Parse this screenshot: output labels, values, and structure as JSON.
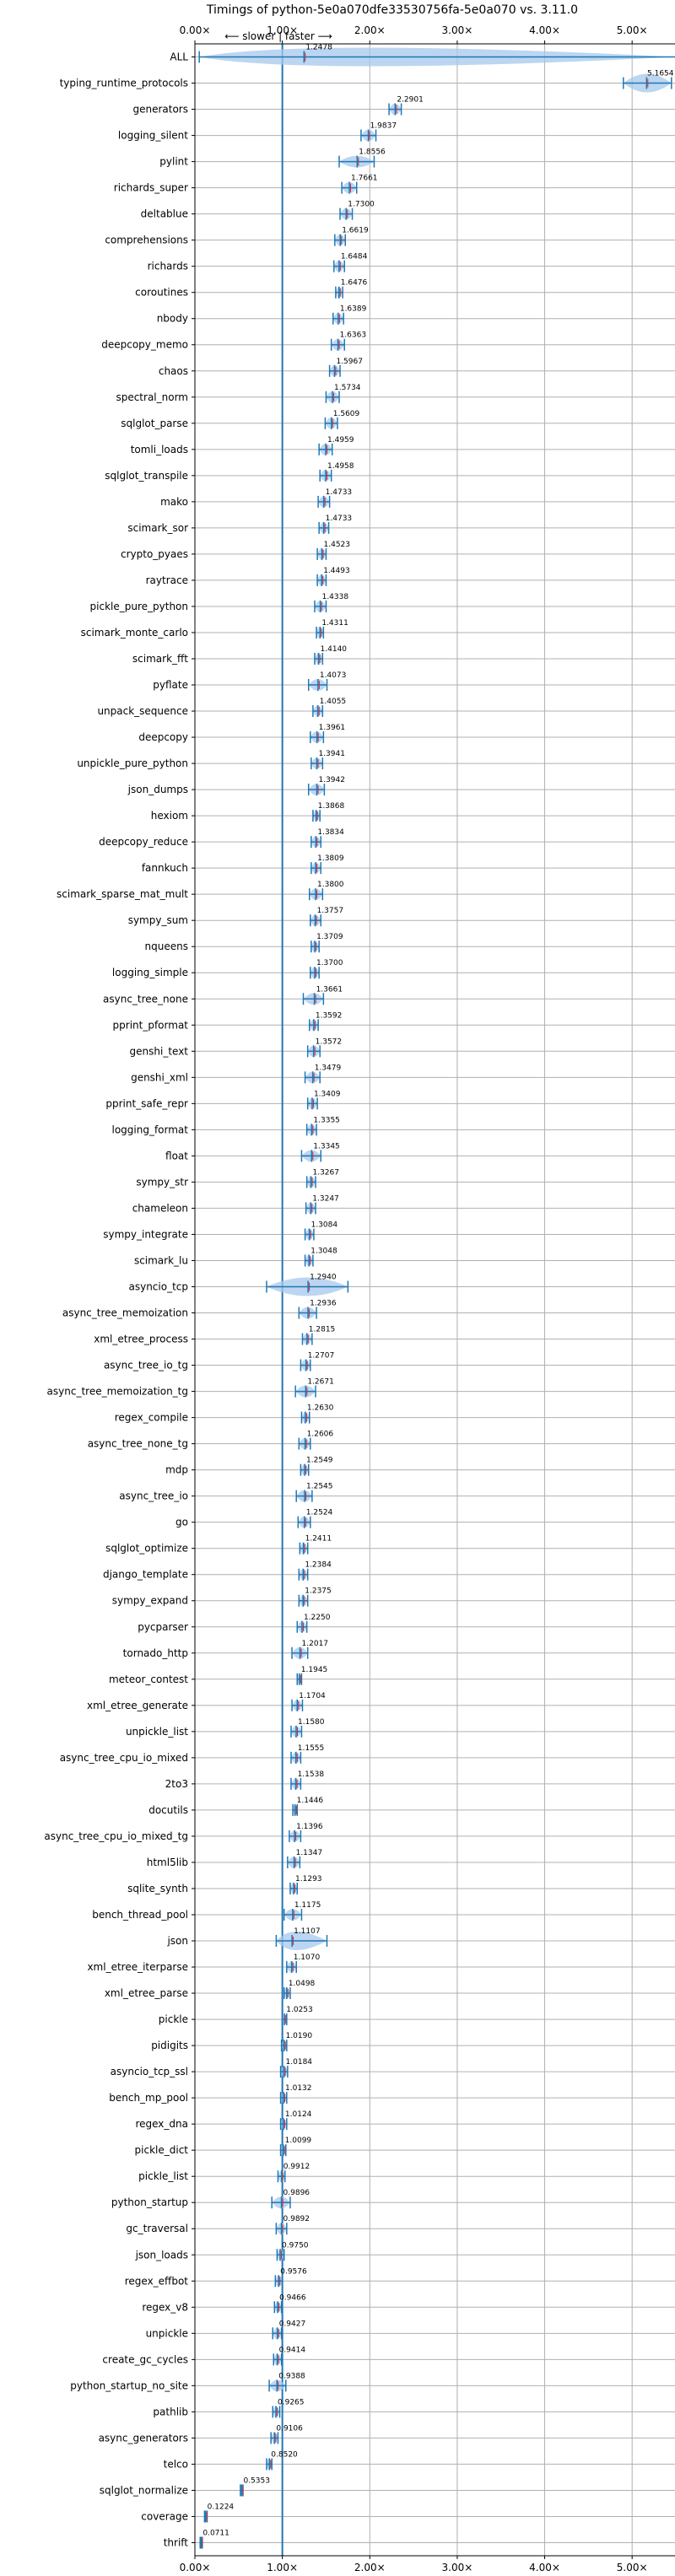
{
  "chart_data": {
    "type": "violin",
    "title": "Timings of python-5e0a070dfe33530756fa-5e0a070 vs. 3.11.0",
    "direction_annotation": "⟵ slower | faster ⟶",
    "xlim": [
      0,
      5.5
    ],
    "x_ticks": [
      "0.00×",
      "1.00×",
      "2.00×",
      "3.00×",
      "4.00×",
      "5.00×"
    ],
    "x_tick_values": [
      0,
      1,
      2,
      3,
      4,
      5
    ],
    "grid": true,
    "reference_line": 1.0,
    "colors": {
      "violin": "#a6c8ec",
      "errorbar": "#1f77b4",
      "median": "#d62728",
      "reference": "#1f77b4"
    },
    "categories": [
      "ALL",
      "typing_runtime_protocols",
      "generators",
      "logging_silent",
      "pylint",
      "richards_super",
      "deltablue",
      "comprehensions",
      "richards",
      "coroutines",
      "nbody",
      "deepcopy_memo",
      "chaos",
      "spectral_norm",
      "sqlglot_parse",
      "tomli_loads",
      "sqlglot_transpile",
      "mako",
      "scimark_sor",
      "crypto_pyaes",
      "raytrace",
      "pickle_pure_python",
      "scimark_monte_carlo",
      "scimark_fft",
      "pyflate",
      "unpack_sequence",
      "deepcopy",
      "unpickle_pure_python",
      "json_dumps",
      "hexiom",
      "deepcopy_reduce",
      "fannkuch",
      "scimark_sparse_mat_mult",
      "sympy_sum",
      "nqueens",
      "logging_simple",
      "async_tree_none",
      "pprint_pformat",
      "genshi_text",
      "genshi_xml",
      "pprint_safe_repr",
      "logging_format",
      "float",
      "sympy_str",
      "chameleon",
      "sympy_integrate",
      "scimark_lu",
      "asyncio_tcp",
      "async_tree_memoization",
      "xml_etree_process",
      "async_tree_io_tg",
      "async_tree_memoization_tg",
      "regex_compile",
      "async_tree_none_tg",
      "mdp",
      "async_tree_io",
      "go",
      "sqlglot_optimize",
      "django_template",
      "sympy_expand",
      "pycparser",
      "tornado_http",
      "meteor_contest",
      "xml_etree_generate",
      "unpickle_list",
      "async_tree_cpu_io_mixed",
      "2to3",
      "docutils",
      "async_tree_cpu_io_mixed_tg",
      "html5lib",
      "sqlite_synth",
      "bench_thread_pool",
      "json",
      "xml_etree_iterparse",
      "xml_etree_parse",
      "pickle",
      "pidigits",
      "asyncio_tcp_ssl",
      "bench_mp_pool",
      "regex_dna",
      "pickle_dict",
      "pickle_list",
      "python_startup",
      "gc_traversal",
      "json_loads",
      "regex_effbot",
      "regex_v8",
      "unpickle",
      "create_gc_cycles",
      "python_startup_no_site",
      "pathlib",
      "async_generators",
      "telco",
      "sqlglot_normalize",
      "coverage",
      "thrift"
    ],
    "values": [
      1.2478,
      5.1654,
      2.2901,
      1.9837,
      1.8556,
      1.7661,
      1.73,
      1.6619,
      1.6484,
      1.6476,
      1.6389,
      1.6363,
      1.5967,
      1.5734,
      1.5609,
      1.4959,
      1.4958,
      1.4733,
      1.4733,
      1.4523,
      1.4493,
      1.4338,
      1.4311,
      1.414,
      1.4073,
      1.4055,
      1.3961,
      1.3941,
      1.3942,
      1.3868,
      1.3834,
      1.3809,
      1.38,
      1.3757,
      1.3709,
      1.37,
      1.3661,
      1.3592,
      1.3572,
      1.3479,
      1.3409,
      1.3355,
      1.3345,
      1.3267,
      1.3247,
      1.3084,
      1.3048,
      1.294,
      1.2936,
      1.2815,
      1.2707,
      1.2671,
      1.263,
      1.2606,
      1.2549,
      1.2545,
      1.2524,
      1.2411,
      1.2384,
      1.2375,
      1.225,
      1.2017,
      1.1945,
      1.1704,
      1.158,
      1.1555,
      1.1538,
      1.1446,
      1.1396,
      1.1347,
      1.1293,
      1.1175,
      1.1107,
      1.107,
      1.0498,
      1.0253,
      1.019,
      1.0184,
      1.0132,
      1.0124,
      1.0099,
      0.9912,
      0.9896,
      0.9892,
      0.975,
      0.9576,
      0.9466,
      0.9427,
      0.9414,
      0.9388,
      0.9265,
      0.9106,
      0.852,
      0.5353,
      0.1224,
      0.0711
    ],
    "value_labels": [
      "1.2478",
      "5.1654",
      "2.2901",
      "1.9837",
      "1.8556",
      "1.7661",
      "1.7300",
      "1.6619",
      "1.6484",
      "1.6476",
      "1.6389",
      "1.6363",
      "1.5967",
      "1.5734",
      "1.5609",
      "1.4959",
      "1.4958",
      "1.4733",
      "1.4733",
      "1.4523",
      "1.4493",
      "1.4338",
      "1.4311",
      "1.4140",
      "1.4073",
      "1.4055",
      "1.3961",
      "1.3941",
      "1.3942",
      "1.3868",
      "1.3834",
      "1.3809",
      "1.3800",
      "1.3757",
      "1.3709",
      "1.3700",
      "1.3661",
      "1.3592",
      "1.3572",
      "1.3479",
      "1.3409",
      "1.3355",
      "1.3345",
      "1.3267",
      "1.3247",
      "1.3084",
      "1.3048",
      "1.2940",
      "1.2936",
      "1.2815",
      "1.2707",
      "1.2671",
      "1.2630",
      "1.2606",
      "1.2549",
      "1.2545",
      "1.2524",
      "1.2411",
      "1.2384",
      "1.2375",
      "1.2250",
      "1.2017",
      "1.1945",
      "1.1704",
      "1.1580",
      "1.1555",
      "1.1538",
      "1.1446",
      "1.1396",
      "1.1347",
      "1.1293",
      "1.1175",
      "1.1107",
      "1.1070",
      "1.0498",
      "1.0253",
      "1.0190",
      "1.0184",
      "1.0132",
      "1.0124",
      "1.0099",
      "0.9912",
      "0.9896",
      "0.9892",
      "0.9750",
      "0.9576",
      "0.9466",
      "0.9427",
      "0.9414",
      "0.9388",
      "0.9265",
      "0.9106",
      "0.8520",
      "0.5353",
      "0.1224",
      "0.0711"
    ],
    "ranges": [
      [
        0.05,
        5.5
      ],
      [
        4.9,
        5.45
      ],
      [
        2.22,
        2.36
      ],
      [
        1.9,
        2.07
      ],
      [
        1.65,
        2.05
      ],
      [
        1.68,
        1.85
      ],
      [
        1.66,
        1.8
      ],
      [
        1.6,
        1.72
      ],
      [
        1.59,
        1.71
      ],
      [
        1.61,
        1.69
      ],
      [
        1.58,
        1.7
      ],
      [
        1.56,
        1.71
      ],
      [
        1.54,
        1.66
      ],
      [
        1.5,
        1.65
      ],
      [
        1.49,
        1.63
      ],
      [
        1.42,
        1.57
      ],
      [
        1.43,
        1.56
      ],
      [
        1.41,
        1.54
      ],
      [
        1.42,
        1.53
      ],
      [
        1.4,
        1.5
      ],
      [
        1.4,
        1.5
      ],
      [
        1.37,
        1.5
      ],
      [
        1.39,
        1.47
      ],
      [
        1.37,
        1.46
      ],
      [
        1.3,
        1.51
      ],
      [
        1.35,
        1.46
      ],
      [
        1.32,
        1.47
      ],
      [
        1.33,
        1.46
      ],
      [
        1.3,
        1.48
      ],
      [
        1.35,
        1.43
      ],
      [
        1.33,
        1.44
      ],
      [
        1.33,
        1.44
      ],
      [
        1.31,
        1.46
      ],
      [
        1.32,
        1.44
      ],
      [
        1.33,
        1.42
      ],
      [
        1.32,
        1.42
      ],
      [
        1.24,
        1.47
      ],
      [
        1.31,
        1.41
      ],
      [
        1.29,
        1.43
      ],
      [
        1.26,
        1.43
      ],
      [
        1.29,
        1.4
      ],
      [
        1.28,
        1.39
      ],
      [
        1.22,
        1.44
      ],
      [
        1.28,
        1.38
      ],
      [
        1.27,
        1.38
      ],
      [
        1.26,
        1.36
      ],
      [
        1.26,
        1.35
      ],
      [
        0.82,
        1.75
      ],
      [
        1.19,
        1.39
      ],
      [
        1.23,
        1.34
      ],
      [
        1.21,
        1.32
      ],
      [
        1.15,
        1.38
      ],
      [
        1.22,
        1.31
      ],
      [
        1.19,
        1.32
      ],
      [
        1.21,
        1.3
      ],
      [
        1.16,
        1.34
      ],
      [
        1.18,
        1.32
      ],
      [
        1.2,
        1.29
      ],
      [
        1.19,
        1.29
      ],
      [
        1.19,
        1.29
      ],
      [
        1.17,
        1.28
      ],
      [
        1.11,
        1.29
      ],
      [
        1.17,
        1.22
      ],
      [
        1.11,
        1.23
      ],
      [
        1.1,
        1.22
      ],
      [
        1.1,
        1.21
      ],
      [
        1.1,
        1.21
      ],
      [
        1.12,
        1.17
      ],
      [
        1.08,
        1.21
      ],
      [
        1.06,
        1.2
      ],
      [
        1.09,
        1.17
      ],
      [
        1.02,
        1.22
      ],
      [
        0.93,
        1.51
      ],
      [
        1.05,
        1.16
      ],
      [
        1.02,
        1.09
      ],
      [
        1.0,
        1.05
      ],
      [
        0.99,
        1.05
      ],
      [
        0.98,
        1.06
      ],
      [
        0.98,
        1.05
      ],
      [
        0.98,
        1.05
      ],
      [
        0.98,
        1.04
      ],
      [
        0.95,
        1.03
      ],
      [
        0.88,
        1.09
      ],
      [
        0.93,
        1.05
      ],
      [
        0.94,
        1.02
      ],
      [
        0.92,
        1.0
      ],
      [
        0.91,
        0.99
      ],
      [
        0.89,
        0.99
      ],
      [
        0.9,
        0.99
      ],
      [
        0.85,
        1.04
      ],
      [
        0.89,
        0.97
      ],
      [
        0.87,
        0.95
      ],
      [
        0.82,
        0.88
      ],
      [
        0.52,
        0.55
      ],
      [
        0.11,
        0.14
      ],
      [
        0.06,
        0.085
      ]
    ]
  }
}
